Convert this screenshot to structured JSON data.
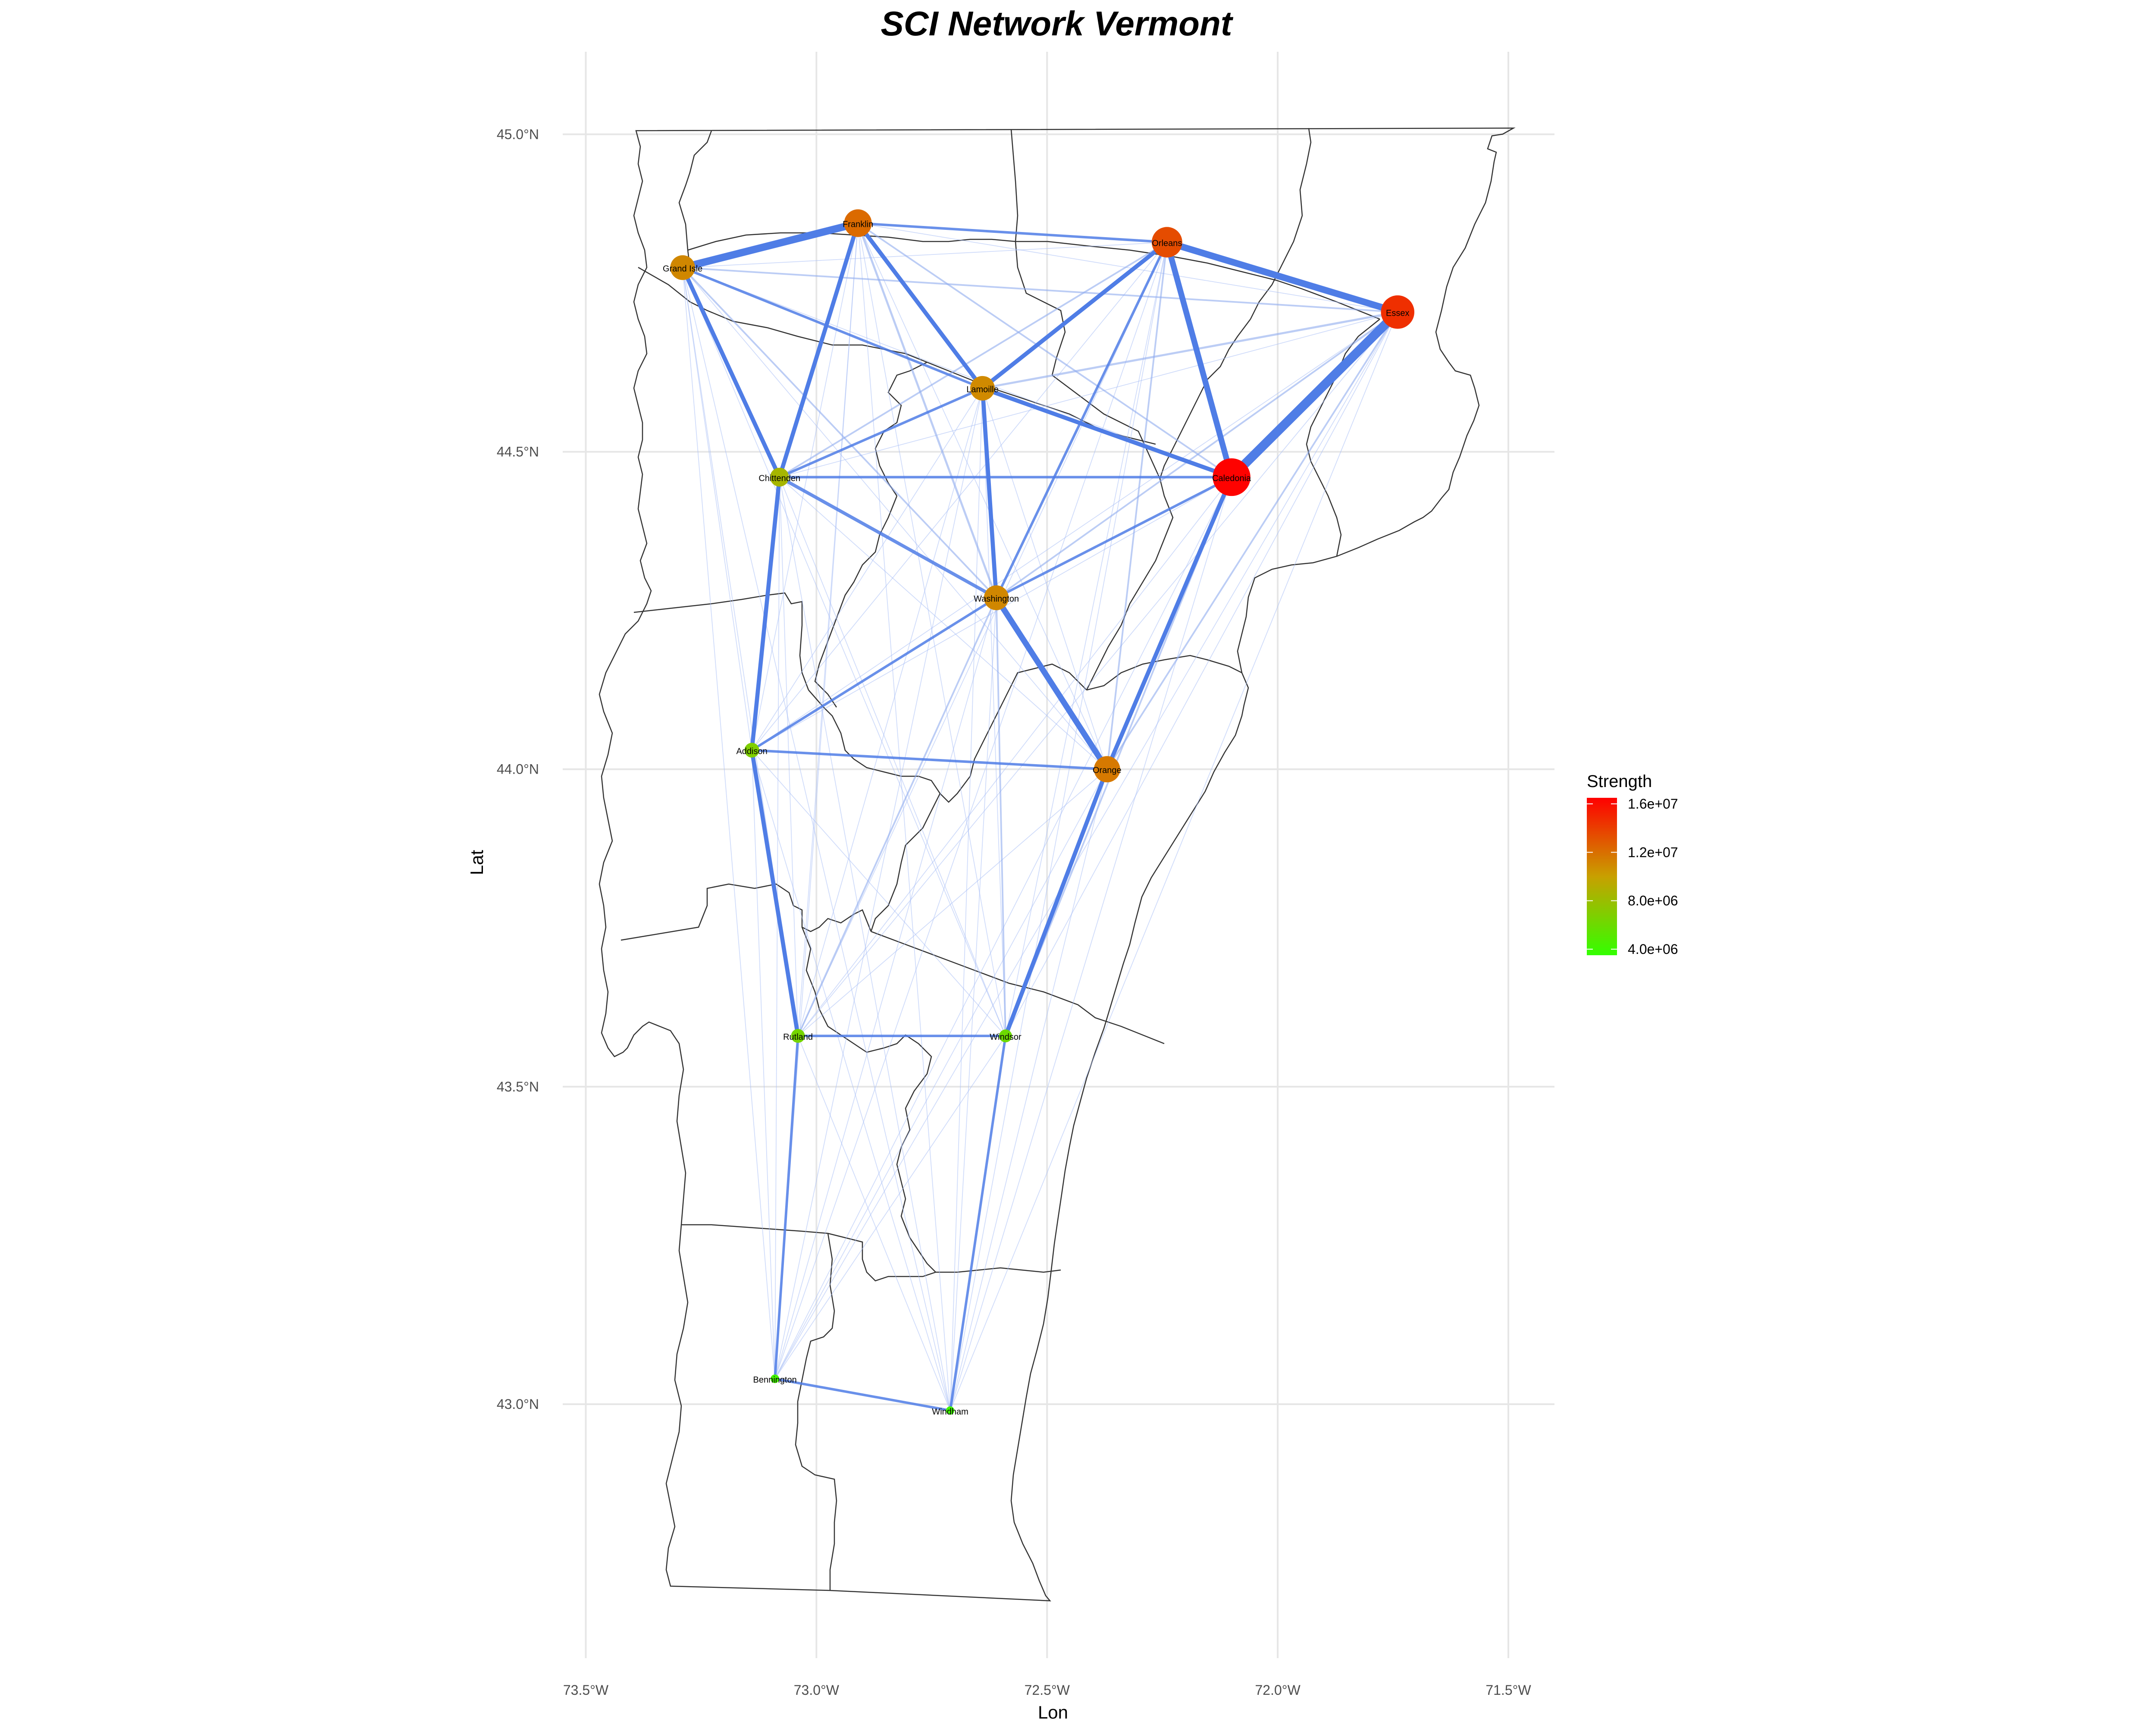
{
  "chart_data": {
    "type": "network-map",
    "title": "SCI Network Vermont",
    "xlabel": "Lon",
    "ylabel": "Lat",
    "xlim": [
      -73.55,
      -71.4
    ],
    "ylim": [
      42.6,
      45.13
    ],
    "x_ticks": [
      {
        "value": -73.5,
        "label": "73.5°W"
      },
      {
        "value": -73.0,
        "label": "73.0°W"
      },
      {
        "value": -72.5,
        "label": "72.5°W"
      },
      {
        "value": -72.0,
        "label": "72.0°W"
      },
      {
        "value": -71.5,
        "label": "71.5°W"
      }
    ],
    "y_ticks": [
      {
        "value": 43.0,
        "label": "43.0°N"
      },
      {
        "value": 43.5,
        "label": "43.5°N"
      },
      {
        "value": 44.0,
        "label": "44.0°N"
      },
      {
        "value": 44.5,
        "label": "44.5°N"
      },
      {
        "value": 45.0,
        "label": "45.0°N"
      }
    ],
    "legend": {
      "title": "Strength",
      "position": "right",
      "min": 3500000,
      "max": 16500000,
      "low_color": "#33ff00",
      "high_color": "#ff0000",
      "ticks": [
        {
          "value": 4000000,
          "label": "4.0e+06"
        },
        {
          "value": 8000000,
          "label": "8.0e+06"
        },
        {
          "value": 12000000,
          "label": "1.2e+07"
        },
        {
          "value": 16000000,
          "label": "1.6e+07"
        }
      ]
    },
    "nodes": [
      {
        "name": "Grand Isle",
        "lon": -73.29,
        "lat": 44.79,
        "strength": 11000000
      },
      {
        "name": "Franklin",
        "lon": -72.91,
        "lat": 44.86,
        "strength": 12200000
      },
      {
        "name": "Orleans",
        "lon": -72.24,
        "lat": 44.83,
        "strength": 13400000
      },
      {
        "name": "Essex",
        "lon": -71.74,
        "lat": 44.72,
        "strength": 14600000
      },
      {
        "name": "Lamoille",
        "lon": -72.64,
        "lat": 44.6,
        "strength": 10900000
      },
      {
        "name": "Chittenden",
        "lon": -73.08,
        "lat": 44.46,
        "strength": 8500000
      },
      {
        "name": "Caledonia",
        "lon": -72.1,
        "lat": 44.46,
        "strength": 16400000
      },
      {
        "name": "Washington",
        "lon": -72.61,
        "lat": 44.27,
        "strength": 11000000
      },
      {
        "name": "Addison",
        "lon": -73.14,
        "lat": 44.03,
        "strength": 6800000
      },
      {
        "name": "Orange",
        "lon": -72.37,
        "lat": 44.0,
        "strength": 11600000
      },
      {
        "name": "Rutland",
        "lon": -73.04,
        "lat": 43.58,
        "strength": 6400000
      },
      {
        "name": "Windsor",
        "lon": -72.59,
        "lat": 43.58,
        "strength": 6000000
      },
      {
        "name": "Bennington",
        "lon": -73.09,
        "lat": 43.04,
        "strength": 4200000
      },
      {
        "name": "Windham",
        "lon": -72.71,
        "lat": 42.99,
        "strength": 4100000
      }
    ],
    "strong_edges": [
      {
        "from": "Grand Isle",
        "to": "Franklin",
        "weight": 8
      },
      {
        "from": "Caledonia",
        "to": "Essex",
        "weight": 10
      },
      {
        "from": "Orleans",
        "to": "Essex",
        "weight": 7
      },
      {
        "from": "Orleans",
        "to": "Caledonia",
        "weight": 6
      },
      {
        "from": "Washington",
        "to": "Orange",
        "weight": 6
      },
      {
        "from": "Franklin",
        "to": "Lamoille",
        "weight": 4
      },
      {
        "from": "Franklin",
        "to": "Chittenden",
        "weight": 4
      },
      {
        "from": "Grand Isle",
        "to": "Chittenden",
        "weight": 4
      },
      {
        "from": "Lamoille",
        "to": "Orleans",
        "weight": 4
      },
      {
        "from": "Lamoille",
        "to": "Caledonia",
        "weight": 4
      },
      {
        "from": "Lamoille",
        "to": "Washington",
        "weight": 4
      },
      {
        "from": "Chittenden",
        "to": "Addison",
        "weight": 4
      },
      {
        "from": "Chittenden",
        "to": "Washington",
        "weight": 3
      },
      {
        "from": "Caledonia",
        "to": "Orange",
        "weight": 4
      },
      {
        "from": "Addison",
        "to": "Rutland",
        "weight": 4
      },
      {
        "from": "Orange",
        "to": "Windsor",
        "weight": 4
      },
      {
        "from": "Franklin",
        "to": "Orleans",
        "weight": 2
      },
      {
        "from": "Chittenden",
        "to": "Lamoille",
        "weight": 2
      },
      {
        "from": "Chittenden",
        "to": "Caledonia",
        "weight": 2
      },
      {
        "from": "Washington",
        "to": "Caledonia",
        "weight": 2
      },
      {
        "from": "Washington",
        "to": "Orleans",
        "weight": 2
      },
      {
        "from": "Addison",
        "to": "Washington",
        "weight": 2
      },
      {
        "from": "Addison",
        "to": "Orange",
        "weight": 2
      },
      {
        "from": "Rutland",
        "to": "Windsor",
        "weight": 2
      },
      {
        "from": "Rutland",
        "to": "Bennington",
        "weight": 2
      },
      {
        "from": "Windsor",
        "to": "Windham",
        "weight": 2
      },
      {
        "from": "Bennington",
        "to": "Windham",
        "weight": 2
      },
      {
        "from": "Grand Isle",
        "to": "Lamoille",
        "weight": 2
      },
      {
        "from": "Lamoille",
        "to": "Essex",
        "weight": 1.5
      },
      {
        "from": "Franklin",
        "to": "Washington",
        "weight": 1.5
      },
      {
        "from": "Grand Isle",
        "to": "Essex",
        "weight": 1
      },
      {
        "from": "Grand Isle",
        "to": "Washington",
        "weight": 1
      },
      {
        "from": "Rutland",
        "to": "Washington",
        "weight": 1
      },
      {
        "from": "Windsor",
        "to": "Washington",
        "weight": 1
      },
      {
        "from": "Windsor",
        "to": "Caledonia",
        "weight": 1
      },
      {
        "from": "Essex",
        "to": "Washington",
        "weight": 1
      },
      {
        "from": "Essex",
        "to": "Orange",
        "weight": 1
      },
      {
        "from": "Franklin",
        "to": "Caledonia",
        "weight": 1
      },
      {
        "from": "Orleans",
        "to": "Orange",
        "weight": 1
      },
      {
        "from": "Orleans",
        "to": "Chittenden",
        "weight": 1
      }
    ],
    "weak_edge_policy": "all remaining county pairs drawn as faint edges"
  }
}
